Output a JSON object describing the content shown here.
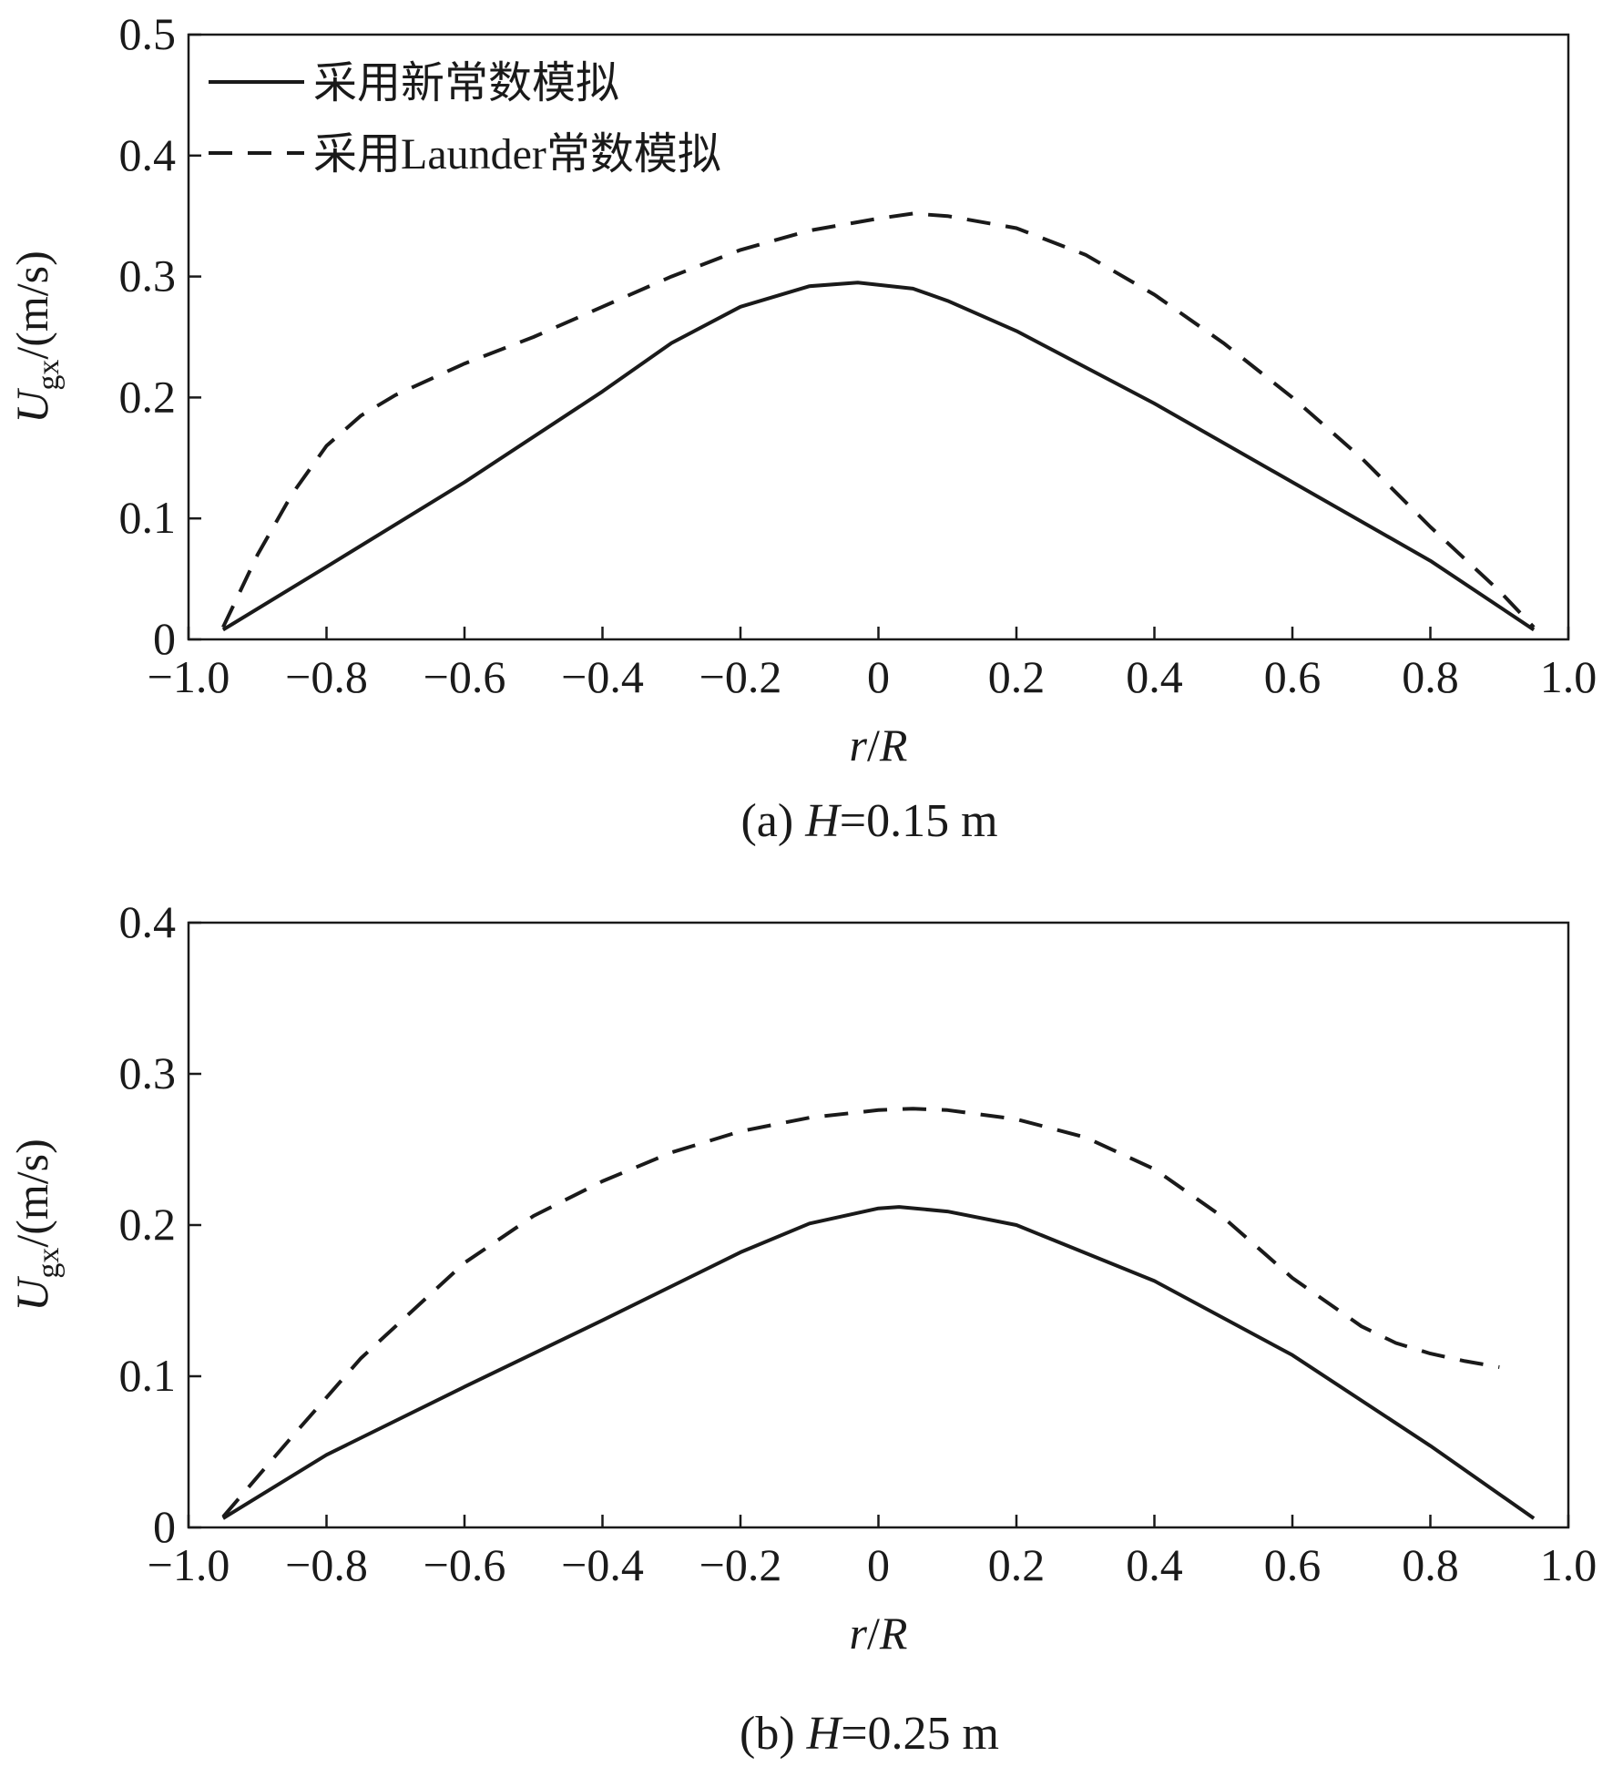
{
  "chart_data": [
    {
      "type": "line",
      "caption_prefix": "(a) ",
      "caption_var": "H",
      "caption_suffix": "=0.15 m",
      "xlabel_var1": "r",
      "xlabel_sep": "/",
      "xlabel_var2": "R",
      "ylabel_var": "U",
      "ylabel_sub": "gx",
      "ylabel_unit": "/(m/s)",
      "xlim": [
        -1.0,
        1.0
      ],
      "ylim": [
        0,
        0.5
      ],
      "xticks": [
        -1.0,
        -0.8,
        -0.6,
        -0.4,
        -0.2,
        0,
        0.2,
        0.4,
        0.6,
        0.8,
        1.0
      ],
      "xtick_labels": [
        "−1.0",
        "−0.8",
        "−0.6",
        "−0.4",
        "−0.2",
        "0",
        "0.2",
        "0.4",
        "0.6",
        "0.8",
        "1.0"
      ],
      "yticks": [
        0,
        0.1,
        0.2,
        0.3,
        0.4,
        0.5
      ],
      "ytick_labels": [
        "0",
        "0.1",
        "0.2",
        "0.3",
        "0.4",
        "0.5"
      ],
      "grid": false,
      "legend": "top-left",
      "series": [
        {
          "name": "采用新常数模拟",
          "style": "solid",
          "x": [
            -0.95,
            -0.8,
            -0.6,
            -0.4,
            -0.3,
            -0.2,
            -0.1,
            -0.03,
            0.05,
            0.1,
            0.2,
            0.4,
            0.6,
            0.8,
            0.95
          ],
          "y": [
            0.008,
            0.06,
            0.13,
            0.205,
            0.245,
            0.275,
            0.292,
            0.295,
            0.29,
            0.28,
            0.255,
            0.195,
            0.13,
            0.065,
            0.008
          ]
        },
        {
          "name": "采用Launder常数模拟",
          "style": "dashed",
          "x": [
            -0.95,
            -0.9,
            -0.85,
            -0.8,
            -0.75,
            -0.7,
            -0.6,
            -0.5,
            -0.4,
            -0.3,
            -0.2,
            -0.1,
            0,
            0.05,
            0.1,
            0.2,
            0.3,
            0.4,
            0.5,
            0.6,
            0.7,
            0.8,
            0.9,
            0.95
          ],
          "y": [
            0.01,
            0.07,
            0.12,
            0.16,
            0.185,
            0.202,
            0.228,
            0.25,
            0.275,
            0.3,
            0.322,
            0.338,
            0.348,
            0.352,
            0.35,
            0.34,
            0.318,
            0.285,
            0.245,
            0.2,
            0.15,
            0.093,
            0.04,
            0.01
          ]
        }
      ]
    },
    {
      "type": "line",
      "caption_prefix": "(b) ",
      "caption_var": "H",
      "caption_suffix": "=0.25 m",
      "xlabel_var1": "r",
      "xlabel_sep": "/",
      "xlabel_var2": "R",
      "ylabel_var": "U",
      "ylabel_sub": "gx",
      "ylabel_unit": "/(m/s)",
      "xlim": [
        -1.0,
        1.0
      ],
      "ylim": [
        0,
        0.4
      ],
      "xticks": [
        -1.0,
        -0.8,
        -0.6,
        -0.4,
        -0.2,
        0,
        0.2,
        0.4,
        0.6,
        0.8,
        1.0
      ],
      "xtick_labels": [
        "−1.0",
        "−0.8",
        "−0.6",
        "−0.4",
        "−0.2",
        "0",
        "0.2",
        "0.4",
        "0.6",
        "0.8",
        "1.0"
      ],
      "yticks": [
        0,
        0.1,
        0.2,
        0.3,
        0.4
      ],
      "ytick_labels": [
        "0",
        "0.1",
        "0.2",
        "0.3",
        "0.4"
      ],
      "grid": false,
      "legend": "none",
      "series": [
        {
          "name": "",
          "style": "solid",
          "x": [
            -0.95,
            -0.8,
            -0.6,
            -0.4,
            -0.2,
            -0.1,
            0,
            0.03,
            0.1,
            0.2,
            0.4,
            0.6,
            0.8,
            0.95
          ],
          "y": [
            0.006,
            0.048,
            0.093,
            0.137,
            0.182,
            0.201,
            0.211,
            0.212,
            0.209,
            0.2,
            0.163,
            0.114,
            0.054,
            0.006
          ]
        },
        {
          "name": "",
          "style": "dashed",
          "x": [
            -0.95,
            -0.85,
            -0.75,
            -0.6,
            -0.5,
            -0.4,
            -0.3,
            -0.2,
            -0.1,
            0,
            0.05,
            0.1,
            0.2,
            0.3,
            0.4,
            0.5,
            0.6,
            0.7,
            0.75,
            0.8,
            0.85,
            0.9
          ],
          "y": [
            0.007,
            0.06,
            0.112,
            0.175,
            0.206,
            0.229,
            0.248,
            0.262,
            0.271,
            0.276,
            0.277,
            0.276,
            0.27,
            0.258,
            0.237,
            0.205,
            0.165,
            0.133,
            0.122,
            0.115,
            0.11,
            0.106
          ]
        }
      ]
    }
  ]
}
